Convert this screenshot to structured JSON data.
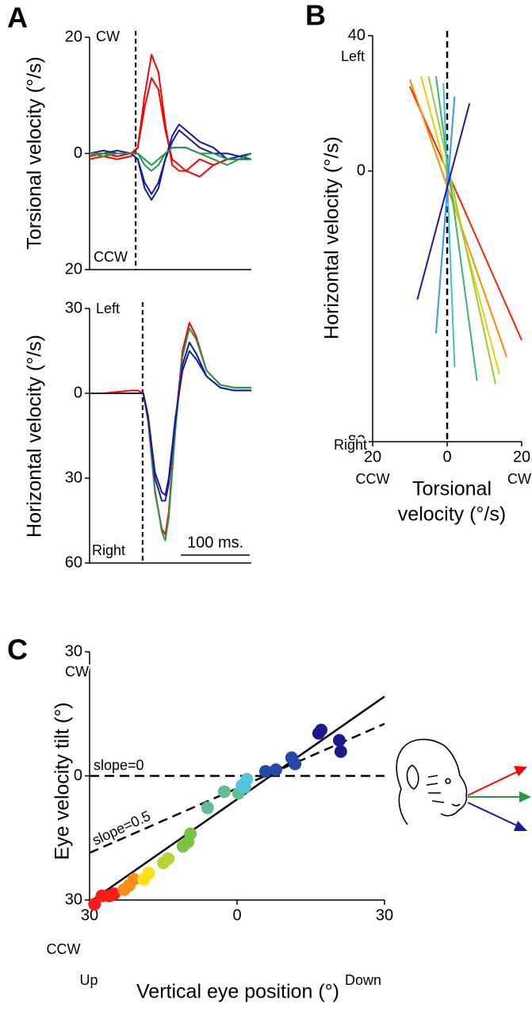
{
  "chart_data": [
    {
      "type": "line",
      "panel": "A",
      "ylabel": "Torsional velocity (°/s)",
      "xlim": [
        0,
        235
      ],
      "ylim": [
        -20,
        20
      ],
      "yticks": [
        20,
        0,
        {
          "value": -20,
          "label": "20"
        }
      ],
      "annotations": [
        "CW",
        "CCW"
      ],
      "onset": 67,
      "x": [
        0,
        20,
        40,
        60,
        70,
        80,
        90,
        100,
        110,
        120,
        130,
        140,
        160,
        180,
        200,
        235
      ],
      "series": [
        {
          "color": "#ff0000",
          "values": [
            -1,
            -0.5,
            -1,
            -0.5,
            1,
            10,
            17,
            14,
            5,
            -2,
            -3,
            -3,
            -1,
            -2,
            -1,
            -1
          ]
        },
        {
          "color": "#ff0000",
          "values": [
            -0.5,
            0,
            -0.5,
            0,
            1,
            8,
            13,
            11,
            4,
            -1,
            -2,
            -3,
            -4,
            -2,
            -1,
            -1
          ]
        },
        {
          "color": "#1a1aa0",
          "values": [
            0,
            0,
            0.5,
            0,
            -1,
            -6,
            -8,
            -6,
            -1,
            3,
            5,
            4,
            2,
            1,
            -1,
            0
          ]
        },
        {
          "color": "#1a1aa0",
          "values": [
            0,
            0.5,
            0,
            0,
            -1,
            -5,
            -7,
            -5,
            -1,
            2,
            4,
            3,
            1,
            0,
            0,
            -1
          ]
        },
        {
          "color": "#229944",
          "values": [
            0,
            0,
            0,
            0,
            0,
            -2,
            -3,
            -2,
            0,
            1,
            1,
            1,
            0,
            -1,
            -2,
            0
          ]
        },
        {
          "color": "#229944",
          "values": [
            0,
            -0.5,
            0,
            0,
            0,
            -1,
            -2,
            -1,
            0,
            1,
            1,
            1,
            0,
            0,
            -1,
            -1
          ]
        }
      ]
    },
    {
      "type": "line",
      "ylabel": "Horizontal velocity (°/s)",
      "xlim": [
        0,
        235
      ],
      "ylim": [
        -60,
        30
      ],
      "yticks": [
        30,
        0,
        {
          "value": -30,
          "label": "30"
        },
        {
          "value": -60,
          "label": "60"
        }
      ],
      "annotations": [
        "Left",
        "Right"
      ],
      "onset": 77,
      "scalebar": {
        "value": 100,
        "label": "100 ms."
      },
      "x": [
        0,
        20,
        40,
        60,
        70,
        78,
        85,
        95,
        105,
        110,
        115,
        125,
        135,
        145,
        155,
        170,
        190,
        210,
        235
      ],
      "series": [
        {
          "color": "#ff0000",
          "values": [
            0,
            0,
            0.5,
            1,
            1,
            0,
            -10,
            -35,
            -48,
            -50,
            -42,
            -10,
            15,
            25,
            20,
            8,
            3,
            2,
            2
          ]
        },
        {
          "color": "#229944",
          "values": [
            0,
            0,
            0,
            0,
            0,
            0,
            -9,
            -34,
            -49,
            -52,
            -44,
            -12,
            13,
            23,
            19,
            8,
            3,
            2,
            2
          ]
        },
        {
          "color": "#1a1aa0",
          "values": [
            0,
            0,
            0,
            0,
            0,
            0,
            -8,
            -28,
            -35,
            -36,
            -30,
            -8,
            8,
            15,
            12,
            6,
            2,
            1,
            1
          ]
        },
        {
          "color": "#1a1aa0",
          "values": [
            0,
            0,
            0,
            0,
            0,
            0,
            -8,
            -30,
            -38,
            -38,
            -32,
            -9,
            10,
            18,
            14,
            6,
            2,
            1,
            1
          ]
        }
      ]
    },
    {
      "type": "line",
      "panel": "B",
      "ylabel": "Horizontal velocity (°/s)",
      "xlabel": [
        "Torsional",
        "velocity (°/s)"
      ],
      "xlim": [
        -20,
        20
      ],
      "ylim": [
        -80,
        40
      ],
      "xticks": [
        {
          "value": -20,
          "label": "20"
        },
        0,
        20
      ],
      "yticks": [
        40,
        0,
        {
          "value": -80,
          "label": "80"
        }
      ],
      "annotations": [
        "Left",
        "Right",
        "CCW",
        "CW"
      ],
      "zeroline": true,
      "series": [
        {
          "color": "#ff2000",
          "x": [
            -10,
            20
          ],
          "values": [
            25,
            -50
          ]
        },
        {
          "color": "#ff8c00",
          "x": [
            -10,
            16
          ],
          "values": [
            27,
            -55
          ]
        },
        {
          "color": "#e6d200",
          "x": [
            -7,
            14
          ],
          "values": [
            28,
            -60
          ]
        },
        {
          "color": "#9acd32",
          "x": [
            -5,
            13
          ],
          "values": [
            28,
            -63
          ]
        },
        {
          "color": "#3cb371",
          "x": [
            -3,
            8
          ],
          "values": [
            28,
            -62
          ]
        },
        {
          "color": "#40c0d0",
          "x": [
            -1,
            2
          ],
          "values": [
            26,
            -58
          ]
        },
        {
          "color": "#3399ff",
          "x": [
            2,
            -3
          ],
          "values": [
            22,
            -48
          ]
        },
        {
          "color": "#1a1aa0",
          "x": [
            6,
            -8
          ],
          "values": [
            20,
            -38
          ]
        }
      ]
    },
    {
      "type": "scatter",
      "panel": "C",
      "ylabel": "Eye velocity tilt (°)",
      "xlabel": [
        "Vertical eye position (°)"
      ],
      "xlim": [
        -30,
        30
      ],
      "ylim": [
        -30,
        30
      ],
      "xticks": [
        {
          "value": -30,
          "label": "30"
        },
        0,
        30
      ],
      "yticks": [
        30,
        0,
        {
          "value": -30,
          "label": "30"
        }
      ],
      "annotations": [
        "CW",
        "CCW",
        "Up",
        "Down"
      ],
      "series": [
        {
          "color": "#ff1a1a",
          "x": [
            -29,
            -27.5,
            -25,
            -26
          ],
          "values": [
            -31,
            -29,
            -28.5,
            -29
          ]
        },
        {
          "color": "#ff8c1a",
          "x": [
            -22,
            -23,
            -21
          ],
          "values": [
            -26.5,
            -27.5,
            -25
          ]
        },
        {
          "color": "#ffe01a",
          "x": [
            -19,
            -18
          ],
          "values": [
            -25,
            -23.5
          ]
        },
        {
          "color": "#b5d534",
          "x": [
            -15,
            -14
          ],
          "values": [
            -21,
            -20
          ]
        },
        {
          "color": "#7cc242",
          "x": [
            -10,
            -11,
            -9.5
          ],
          "values": [
            -16,
            -17,
            -14
          ]
        },
        {
          "color": "#5fbf90",
          "x": [
            -6,
            -2.6,
            0.3
          ],
          "values": [
            -7.7,
            -3.8,
            -4.2
          ]
        },
        {
          "color": "#55c4dd",
          "x": [
            1,
            2,
            1.6
          ],
          "values": [
            -2.3,
            -0.8,
            -2.7
          ]
        },
        {
          "color": "#2449a8",
          "x": [
            5.8,
            7.9,
            11.1,
            11.8
          ],
          "values": [
            1.1,
            1.5,
            4.4,
            2.9
          ]
        },
        {
          "color": "#1a1a8c",
          "x": [
            16.6,
            17.1,
            20.8,
            21.1
          ],
          "values": [
            10.3,
            11.1,
            8.6,
            5.9
          ]
        }
      ],
      "fits": [
        {
          "style": "solid",
          "x": [
            -30,
            30
          ],
          "values": [
            -30.5,
            19.2
          ]
        },
        {
          "style": "dashed",
          "label": "slope=0.5",
          "x": [
            -30,
            30
          ],
          "values": [
            -18.6,
            12.6
          ]
        },
        {
          "style": "dashed",
          "label": "slope=0",
          "x": [
            -30,
            30
          ],
          "values": [
            0,
            0
          ]
        }
      ]
    }
  ]
}
